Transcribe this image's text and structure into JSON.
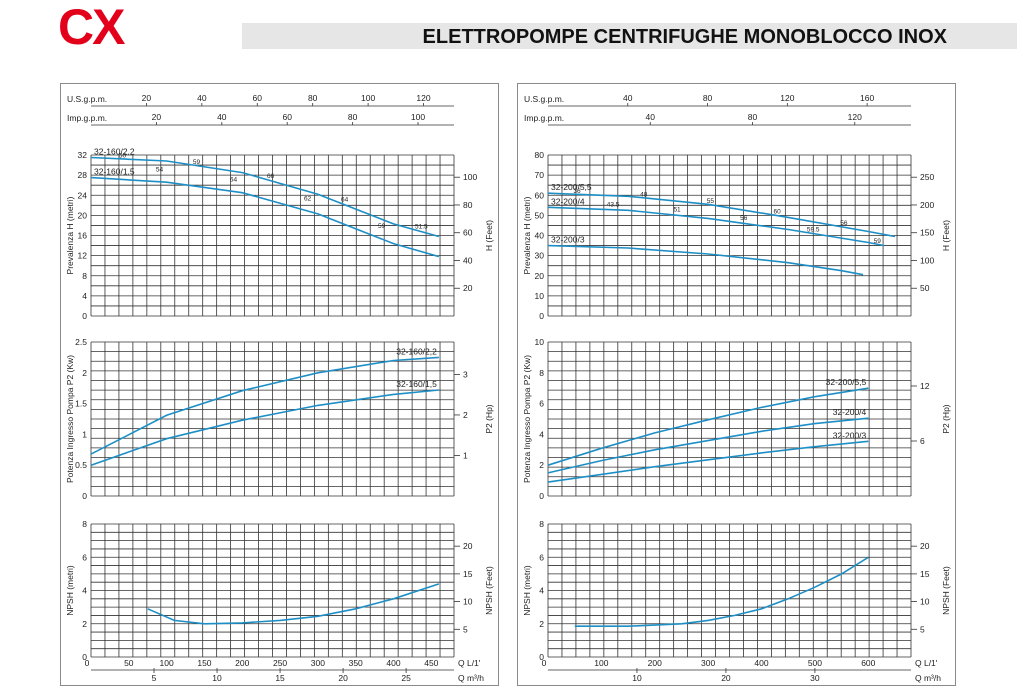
{
  "brand": "CX",
  "header_title": "ELETTROPOMPE CENTRIFUGHE MONOBLOCCO INOX",
  "colors": {
    "brand_red": "#e2001a",
    "curve_blue": "#1e8fc6",
    "header_bg": "#e6e6e6"
  },
  "chart_data": [
    {
      "type": "line",
      "title": "",
      "top_axes": [
        {
          "label": "U.S.g.p.m.",
          "ticks": [
            "20",
            "40",
            "60",
            "80",
            "100",
            "120"
          ]
        },
        {
          "label": "Imp.g.p.m.",
          "ticks": [
            "20",
            "40",
            "60",
            "80",
            "100"
          ]
        }
      ],
      "bottom_axes": [
        {
          "label": "Q  L/1'",
          "ticks": [
            "0",
            "50",
            "100",
            "150",
            "200",
            "250",
            "300",
            "350",
            "400",
            "450"
          ]
        },
        {
          "label": "Q  m³/h",
          "ticks": [
            "5",
            "10",
            "15",
            "20",
            "25"
          ]
        }
      ],
      "xlim": [
        0,
        480
      ],
      "panels": [
        {
          "ylabel": "Prevalenza H (metri)",
          "y2label": "H (Feet)",
          "ylim": [
            0,
            32
          ],
          "yticks": [
            "0",
            "4",
            "8",
            "12",
            "16",
            "20",
            "24",
            "28",
            "32"
          ],
          "y2ticks": [
            "20",
            "40",
            "60",
            "80",
            "100"
          ],
          "series": [
            {
              "name": "32-160/2,2",
              "x": [
                0,
                100,
                200,
                300,
                400,
                460
              ],
              "y": [
                31.5,
                30.8,
                28.5,
                24.2,
                18.3,
                15.8
              ]
            },
            {
              "name": "32-160/1,5",
              "x": [
                0,
                100,
                200,
                300,
                400,
                460
              ],
              "y": [
                27.5,
                26.6,
                24.5,
                20.3,
                14.4,
                11.8
              ]
            }
          ],
          "efficiency_labels": [
            "50",
            "54",
            "59",
            "64",
            "66",
            "62",
            "64",
            "59",
            "51.5"
          ]
        },
        {
          "ylabel": "Potenza Ingresso Pompa P2 (Kw)",
          "y2label": "P2 (Hp)",
          "ylim": [
            0,
            2.5
          ],
          "yticks": [
            "0",
            "0.5",
            "1",
            "1.5",
            "2",
            "2.5"
          ],
          "y2ticks": [
            "1",
            "2",
            "3"
          ],
          "series": [
            {
              "name": "32-160/2,2",
              "x": [
                0,
                100,
                200,
                300,
                400,
                460
              ],
              "y": [
                0.68,
                1.31,
                1.71,
                2.0,
                2.2,
                2.25
              ]
            },
            {
              "name": "32-160/1,5",
              "x": [
                0,
                100,
                200,
                300,
                400,
                460
              ],
              "y": [
                0.5,
                0.93,
                1.23,
                1.47,
                1.65,
                1.72
              ]
            }
          ]
        },
        {
          "ylabel": "NPSH (metri)",
          "y2label": "NPSH (Feet)",
          "ylim": [
            0,
            8
          ],
          "yticks": [
            "0",
            "2",
            "4",
            "6",
            "8"
          ],
          "y2ticks": [
            "5",
            "10",
            "15",
            "20"
          ],
          "series": [
            {
              "x": [
                75,
                110,
                150,
                200,
                250,
                300,
                350,
                400,
                460
              ],
              "y": [
                2.9,
                2.2,
                2.0,
                2.05,
                2.2,
                2.45,
                2.9,
                3.5,
                4.4
              ]
            }
          ]
        }
      ]
    },
    {
      "type": "line",
      "title": "",
      "top_axes": [
        {
          "label": "U.S.g.p.m.",
          "ticks": [
            "40",
            "80",
            "120",
            "160"
          ]
        },
        {
          "label": "Imp.g.p.m.",
          "ticks": [
            "40",
            "80",
            "120"
          ]
        }
      ],
      "bottom_axes": [
        {
          "label": "Q  L/1'",
          "ticks": [
            "0",
            "100",
            "200",
            "300",
            "400",
            "500",
            "600"
          ]
        },
        {
          "label": "Q  m³/h",
          "ticks": [
            "10",
            "20",
            "30"
          ]
        }
      ],
      "xlim": [
        0,
        680
      ],
      "panels": [
        {
          "ylabel": "Prevalenza H (metri)",
          "y2label": "H (Feet)",
          "ylim": [
            0,
            80
          ],
          "yticks": [
            "0",
            "10",
            "20",
            "30",
            "40",
            "50",
            "60",
            "70",
            "80"
          ],
          "y2ticks": [
            "50",
            "100",
            "150",
            "200",
            "250"
          ],
          "series": [
            {
              "name": "32-200/5,5",
              "x": [
                0,
                150,
                300,
                450,
                600,
                650
              ],
              "y": [
                61,
                59.5,
                55.5,
                49,
                42,
                39.5
              ]
            },
            {
              "name": "32-200/4",
              "x": [
                0,
                150,
                300,
                450,
                600,
                630
              ],
              "y": [
                54,
                52.5,
                48.5,
                43,
                36.5,
                35
              ]
            },
            {
              "name": "32-200/3",
              "x": [
                0,
                150,
                300,
                450,
                550,
                590
              ],
              "y": [
                35,
                33.8,
                30.8,
                26.5,
                22.5,
                20.5
              ]
            }
          ],
          "efficiency_labels": [
            "36",
            "43.5",
            "48",
            "51",
            "55",
            "56",
            "60",
            "59.5",
            "56",
            "59"
          ]
        },
        {
          "ylabel": "Potenza Ingresso Pompa P2 (Kw)",
          "y2label": "P2 (Hp)",
          "ylim": [
            0,
            10
          ],
          "yticks": [
            "0",
            "2",
            "4",
            "6",
            "8",
            "10"
          ],
          "y2ticks": [
            "6",
            "12"
          ],
          "series": [
            {
              "name": "32-200/5,5",
              "x": [
                0,
                100,
                200,
                300,
                400,
                500,
                600
              ],
              "y": [
                2.0,
                3.1,
                4.1,
                4.95,
                5.75,
                6.45,
                7.0
              ]
            },
            {
              "name": "32-200/4",
              "x": [
                0,
                100,
                200,
                300,
                400,
                500,
                600
              ],
              "y": [
                1.5,
                2.3,
                3.0,
                3.6,
                4.2,
                4.7,
                5.05
              ]
            },
            {
              "name": "32-200/3",
              "x": [
                0,
                100,
                200,
                300,
                400,
                500,
                600
              ],
              "y": [
                0.9,
                1.4,
                1.9,
                2.35,
                2.8,
                3.2,
                3.55
              ]
            }
          ]
        },
        {
          "ylabel": "NPSH (metri)",
          "y2label": "NPSH (Feet)",
          "ylim": [
            0,
            8
          ],
          "yticks": [
            "0",
            "2",
            "4",
            "6",
            "8"
          ],
          "y2ticks": [
            "5",
            "10",
            "15",
            "20"
          ],
          "series": [
            {
              "x": [
                50,
                150,
                250,
                300,
                350,
                400,
                450,
                500,
                550,
                600
              ],
              "y": [
                1.85,
                1.85,
                2.0,
                2.2,
                2.5,
                2.9,
                3.5,
                4.2,
                5.0,
                6.0
              ]
            }
          ]
        }
      ]
    }
  ]
}
